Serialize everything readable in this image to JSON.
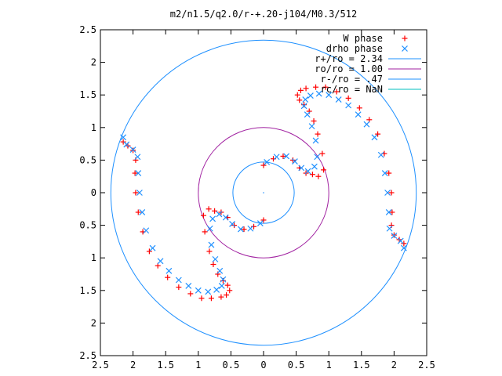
{
  "chart_data": {
    "type": "scatter",
    "title": "m2/n1.5/q2.0/r-+.20-j104/M0.3/512",
    "xlabel": "",
    "ylabel": "",
    "xlim": [
      -2.5,
      2.5
    ],
    "ylim": [
      -2.5,
      2.5
    ],
    "x_tick_values": [
      -2.5,
      -2,
      -1.5,
      -1,
      -0.5,
      0,
      0.5,
      1,
      1.5,
      2,
      2.5
    ],
    "x_tick_labels": [
      "2.5",
      "2",
      "1.5",
      "1",
      "0.5",
      "0",
      "0.5",
      "1",
      "1.5",
      "2",
      "2.5"
    ],
    "y_tick_values": [
      2.5,
      2,
      1.5,
      1,
      0.5,
      0,
      -0.5,
      -1,
      -1.5,
      -2,
      -2.5
    ],
    "y_tick_labels": [
      "2.5",
      "2",
      "1.5",
      "1",
      "0.5",
      "0",
      "0.5",
      "1",
      "1.5",
      "2",
      "2.5"
    ],
    "grid": false,
    "legend_position": "top-right",
    "series": [
      {
        "name": "W phase",
        "marker": "plus",
        "color": "#ff0000",
        "points": [
          [
            0.0,
            0.42
          ],
          [
            0.15,
            0.52
          ],
          [
            0.3,
            0.56
          ],
          [
            0.45,
            0.5
          ],
          [
            0.55,
            0.38
          ],
          [
            0.65,
            0.3
          ],
          [
            0.75,
            0.28
          ],
          [
            0.84,
            0.25
          ],
          [
            0.92,
            0.35
          ],
          [
            0.9,
            0.6
          ],
          [
            0.83,
            0.9
          ],
          [
            0.77,
            1.1
          ],
          [
            0.7,
            1.25
          ],
          [
            0.62,
            1.35
          ],
          [
            0.55,
            1.42
          ],
          [
            0.52,
            1.5
          ],
          [
            0.57,
            1.57
          ],
          [
            0.65,
            1.6
          ],
          [
            0.8,
            1.62
          ],
          [
            0.95,
            1.62
          ],
          [
            1.12,
            1.55
          ],
          [
            1.3,
            1.45
          ],
          [
            1.47,
            1.3
          ],
          [
            1.62,
            1.12
          ],
          [
            1.75,
            0.9
          ],
          [
            1.85,
            0.6
          ],
          [
            1.92,
            0.3
          ],
          [
            1.96,
            0.0
          ],
          [
            1.97,
            -0.3
          ],
          [
            1.96,
            -0.5
          ],
          [
            2.0,
            -0.65
          ],
          [
            2.08,
            -0.72
          ],
          [
            2.15,
            -0.78
          ],
          [
            0.0,
            -0.42
          ],
          [
            -0.15,
            -0.52
          ],
          [
            -0.3,
            -0.56
          ],
          [
            -0.45,
            -0.5
          ],
          [
            -0.55,
            -0.38
          ],
          [
            -0.65,
            -0.3
          ],
          [
            -0.75,
            -0.28
          ],
          [
            -0.84,
            -0.25
          ],
          [
            -0.92,
            -0.35
          ],
          [
            -0.9,
            -0.6
          ],
          [
            -0.83,
            -0.9
          ],
          [
            -0.77,
            -1.1
          ],
          [
            -0.7,
            -1.25
          ],
          [
            -0.62,
            -1.35
          ],
          [
            -0.55,
            -1.42
          ],
          [
            -0.52,
            -1.5
          ],
          [
            -0.57,
            -1.57
          ],
          [
            -0.65,
            -1.6
          ],
          [
            -0.8,
            -1.62
          ],
          [
            -0.95,
            -1.62
          ],
          [
            -1.12,
            -1.55
          ],
          [
            -1.3,
            -1.45
          ],
          [
            -1.47,
            -1.3
          ],
          [
            -1.62,
            -1.12
          ],
          [
            -1.75,
            -0.9
          ],
          [
            -1.85,
            -0.6
          ],
          [
            -1.92,
            -0.3
          ],
          [
            -1.96,
            0.0
          ],
          [
            -1.97,
            0.3
          ],
          [
            -1.96,
            0.5
          ],
          [
            -2.0,
            0.65
          ],
          [
            -2.08,
            0.72
          ],
          [
            -2.15,
            0.78
          ]
        ]
      },
      {
        "name": "drho phase",
        "marker": "cross",
        "color": "#1e90ff",
        "points": [
          [
            0.05,
            0.47
          ],
          [
            0.2,
            0.55
          ],
          [
            0.35,
            0.56
          ],
          [
            0.48,
            0.48
          ],
          [
            0.58,
            0.38
          ],
          [
            0.68,
            0.33
          ],
          [
            0.78,
            0.4
          ],
          [
            0.82,
            0.55
          ],
          [
            0.8,
            0.8
          ],
          [
            0.74,
            1.02
          ],
          [
            0.67,
            1.2
          ],
          [
            0.62,
            1.33
          ],
          [
            0.64,
            1.43
          ],
          [
            0.72,
            1.49
          ],
          [
            0.85,
            1.52
          ],
          [
            1.0,
            1.5
          ],
          [
            1.15,
            1.43
          ],
          [
            1.3,
            1.34
          ],
          [
            1.45,
            1.2
          ],
          [
            1.58,
            1.05
          ],
          [
            1.7,
            0.85
          ],
          [
            1.8,
            0.58
          ],
          [
            1.86,
            0.3
          ],
          [
            1.9,
            0.0
          ],
          [
            1.92,
            -0.3
          ],
          [
            1.93,
            -0.55
          ],
          [
            2.0,
            -0.66
          ],
          [
            2.1,
            -0.74
          ],
          [
            2.15,
            -0.85
          ],
          [
            -0.05,
            -0.47
          ],
          [
            -0.2,
            -0.55
          ],
          [
            -0.35,
            -0.56
          ],
          [
            -0.48,
            -0.48
          ],
          [
            -0.58,
            -0.38
          ],
          [
            -0.68,
            -0.33
          ],
          [
            -0.78,
            -0.4
          ],
          [
            -0.82,
            -0.55
          ],
          [
            -0.8,
            -0.8
          ],
          [
            -0.74,
            -1.02
          ],
          [
            -0.67,
            -1.2
          ],
          [
            -0.62,
            -1.33
          ],
          [
            -0.64,
            -1.43
          ],
          [
            -0.72,
            -1.49
          ],
          [
            -0.85,
            -1.52
          ],
          [
            -1.0,
            -1.5
          ],
          [
            -1.15,
            -1.43
          ],
          [
            -1.3,
            -1.34
          ],
          [
            -1.45,
            -1.2
          ],
          [
            -1.58,
            -1.05
          ],
          [
            -1.7,
            -0.85
          ],
          [
            -1.8,
            -0.58
          ],
          [
            -1.86,
            -0.3
          ],
          [
            -1.9,
            0.0
          ],
          [
            -1.92,
            0.3
          ],
          [
            -1.93,
            0.55
          ],
          [
            -2.0,
            0.66
          ],
          [
            -2.1,
            0.74
          ],
          [
            -2.15,
            0.85
          ]
        ]
      }
    ],
    "circles": [
      {
        "name": "r+/ro = 2.34",
        "radius": 2.34,
        "color": "#1e90ff"
      },
      {
        "name": "ro/ro = 1.00",
        "radius": 1.0,
        "color": "#a020a0"
      },
      {
        "name": "r-/ro = .47",
        "radius": 0.47,
        "color": "#1e90ff"
      },
      {
        "name": "rc/ro = NaN",
        "radius": null,
        "color": "#00bfbf"
      }
    ],
    "legend": [
      {
        "label": "W phase",
        "kind": "plus",
        "color": "#ff0000"
      },
      {
        "label": "drho phase",
        "kind": "cross",
        "color": "#1e90ff"
      },
      {
        "label": "r+/ro = 2.34",
        "kind": "line",
        "color": "#1e90ff"
      },
      {
        "label": "ro/ro = 1.00",
        "kind": "line",
        "color": "#a020a0"
      },
      {
        "label": "r-/ro = .47",
        "kind": "line",
        "color": "#1e90ff"
      },
      {
        "label": "rc/ro = NaN",
        "kind": "line",
        "color": "#00bfbf"
      }
    ]
  }
}
